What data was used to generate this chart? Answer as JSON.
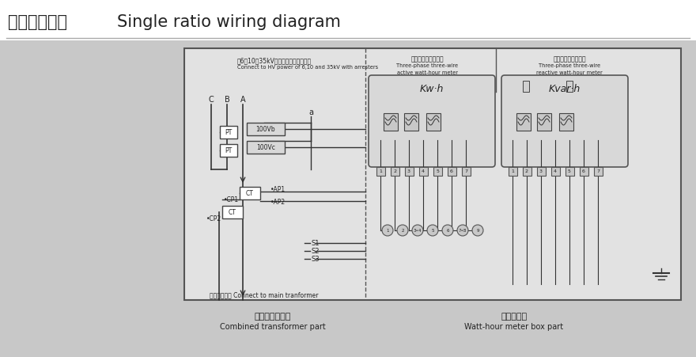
{
  "bg_outer": "#c8c8c8",
  "bg_title": "#ffffff",
  "bg_diagram": "#e0e0e0",
  "panel_fill": "#e8e8e8",
  "line_color": "#333333",
  "dark": "#222222",
  "title_cn": "单变比接线图",
  "title_en": "Single ratio wiring diagram",
  "header_cn1": "接6、10、35kV高压电网同时配避雷器",
  "header_en1": "Connect to HV power of 6,10 and 35kV with arresters",
  "header_cn2": "三相三线有功电度表",
  "header_en2a": "Three-phase three-wire",
  "header_en2b": "active watt-hour meter",
  "header_cn3": "三相三线无功电度表",
  "header_en3a": "Three-phase three-wire",
  "header_en3b": "reactive watt-hour meter",
  "kw_label": "Kw·h",
  "kvar_label": "Kvar·h",
  "bottom_cn1": "组合互感器部分",
  "bottom_en1": "Combined transformer part",
  "bottom_cn2": "电表筱部分",
  "bottom_en2": "Watt-hour meter box part",
  "footer_cn": "接至主变压器 Connect to main tranformer",
  "C_label": "C",
  "B_label": "B",
  "A_label": "A",
  "a_label": "a",
  "PT_label": "PT",
  "V100b": "100Vb",
  "V100c": "100Vc",
  "CT_label": "CT",
  "AP1": "•AP1",
  "CP1": "•CP1",
  "AP2": "•AP2",
  "CP2": "•CP2",
  "S1": "S1",
  "S2": "S2",
  "S3": "S3"
}
